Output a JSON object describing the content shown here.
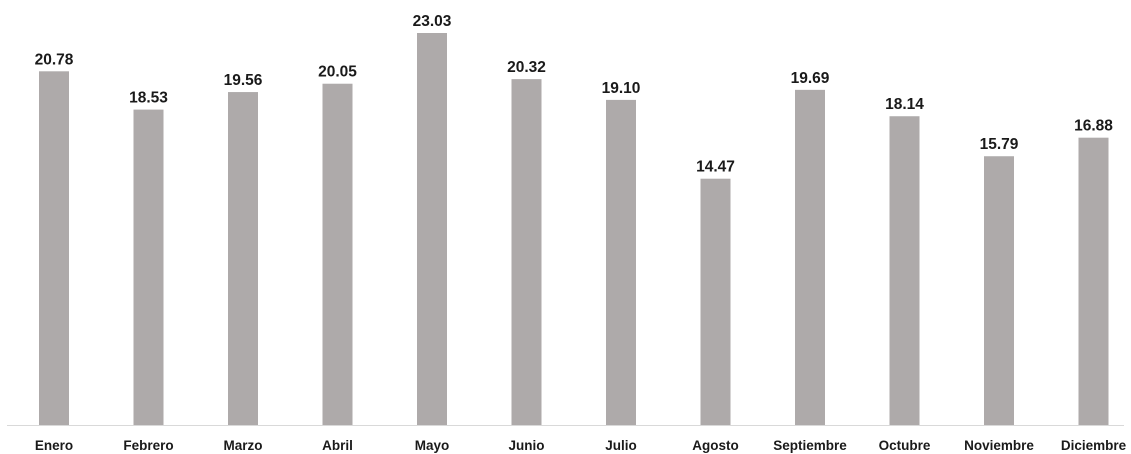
{
  "chart_data": {
    "type": "bar",
    "categories": [
      "Enero",
      "Febrero",
      "Marzo",
      "Abril",
      "Mayo",
      "Junio",
      "Julio",
      "Agosto",
      "Septiembre",
      "Octubre",
      "Noviembre",
      "Diciembre"
    ],
    "values": [
      20.78,
      18.53,
      19.56,
      20.05,
      23.03,
      20.32,
      19.1,
      14.47,
      19.69,
      18.14,
      15.79,
      16.88
    ],
    "value_labels": [
      "20.78",
      "18.53",
      "19.56",
      "20.05",
      "23.03",
      "20.32",
      "19.10",
      "14.47",
      "19.69",
      "18.14",
      "15.79",
      "16.88"
    ],
    "title": "",
    "xlabel": "",
    "ylabel": "",
    "ylim": [
      0,
      23.03
    ],
    "grid": false,
    "legend": "none",
    "bar_color": "#aeaaaa",
    "baseline_color": "#d9d9d9"
  }
}
